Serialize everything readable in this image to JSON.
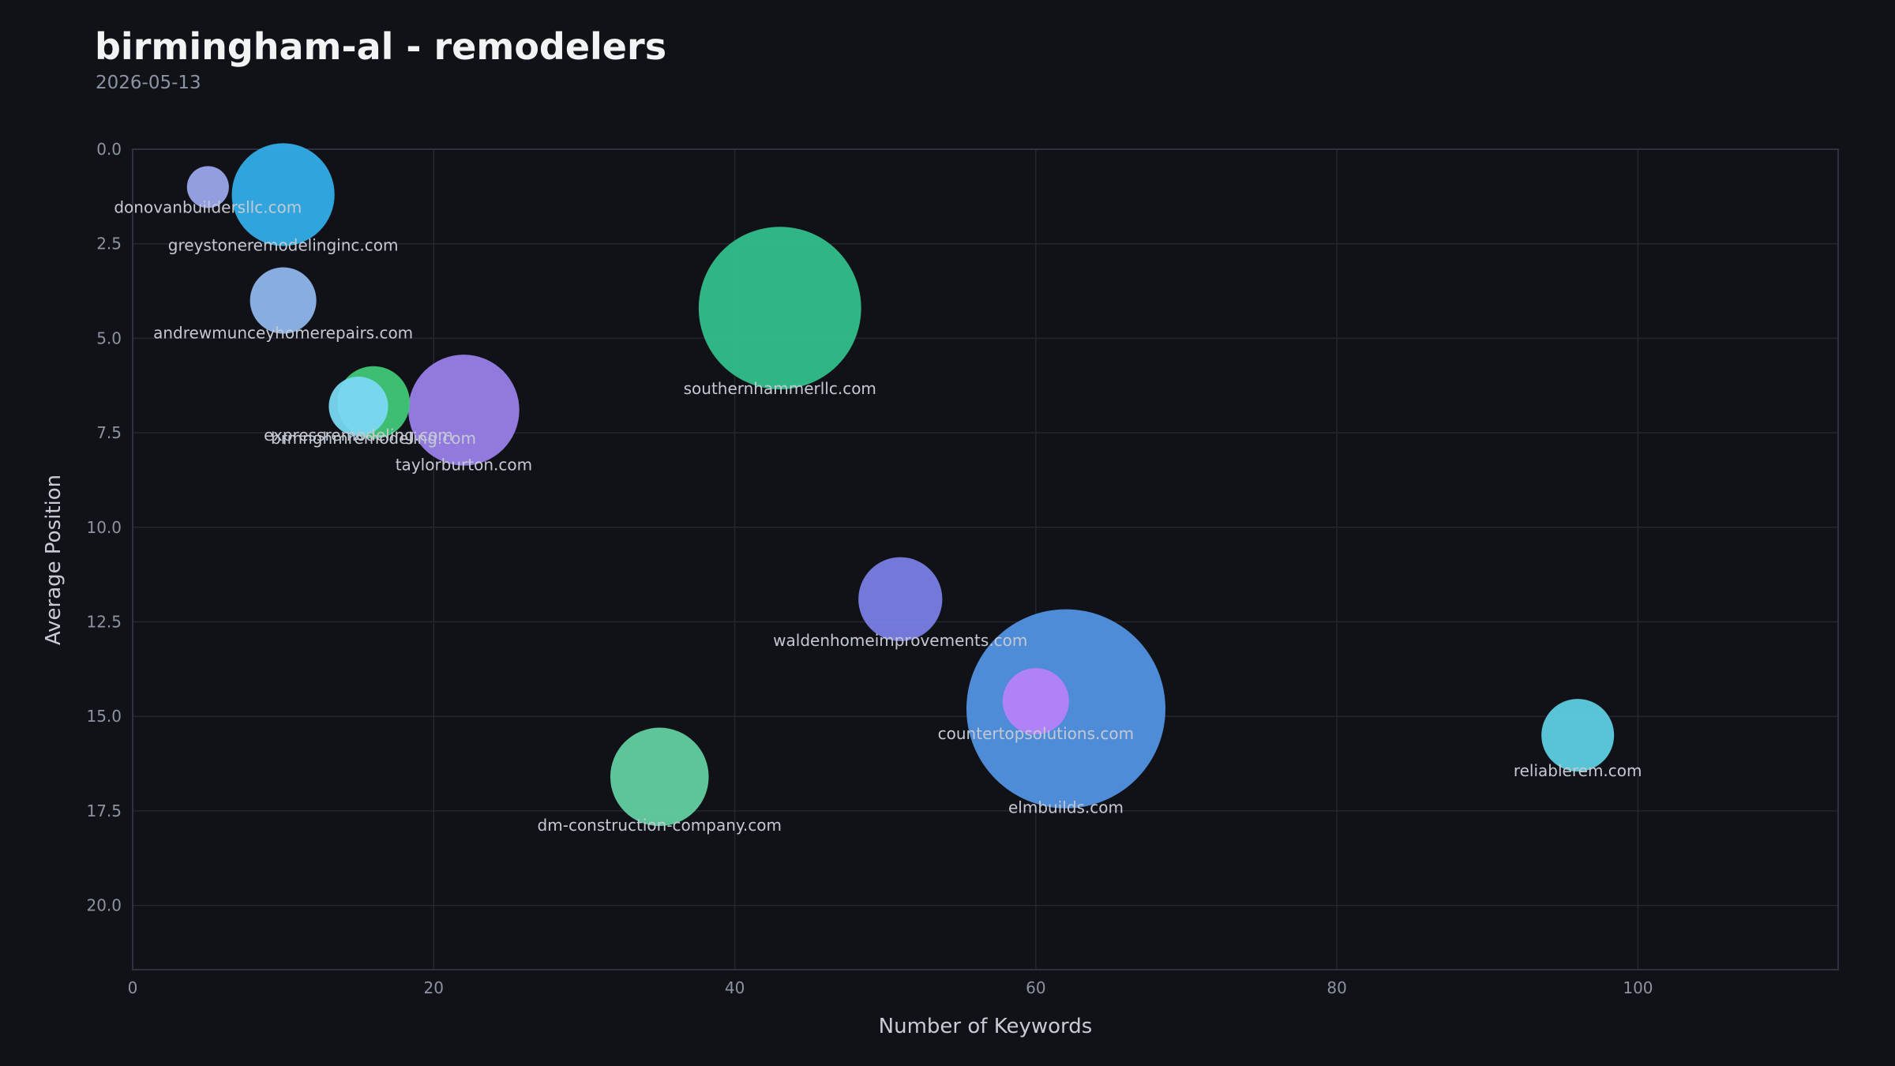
{
  "header": {
    "title": "birmingham-al - remodelers",
    "date": "2026-05-13"
  },
  "chart_data": {
    "type": "scatter",
    "variant": "bubble",
    "xlabel": "Number of Keywords",
    "ylabel": "Average Position",
    "xlim": [
      0,
      113.3
    ],
    "ylim": [
      21.7,
      0
    ],
    "y_inverted": true,
    "xticks": [
      0,
      20,
      40,
      60,
      80,
      100
    ],
    "yticks": [
      0.0,
      2.5,
      5.0,
      7.5,
      10.0,
      12.5,
      15.0,
      17.5,
      20.0
    ],
    "grid": true,
    "legend": "none",
    "points": [
      {
        "label": "donovanbuildersllc.com",
        "x": 5,
        "y": 1.0,
        "size": 2,
        "color": "#9ba7ec"
      },
      {
        "label": "greystoneremodelinginc.com",
        "x": 10,
        "y": 1.2,
        "size": 12,
        "color": "#33aee8"
      },
      {
        "label": "andrewmunceyhomerepairs.com",
        "x": 10,
        "y": 4.0,
        "size": 5,
        "color": "#8fb6eb"
      },
      {
        "label": "southernhammerllc.com",
        "x": 43,
        "y": 4.2,
        "size": 30,
        "color": "#33bf8a"
      },
      {
        "label": "brmnghmremodeling.com",
        "x": 16,
        "y": 6.7,
        "size": 6,
        "color": "#41c877"
      },
      {
        "label": "expressremodeling.com",
        "x": 15,
        "y": 6.8,
        "size": 4,
        "color": "#7ad8f2"
      },
      {
        "label": "taylorburton.com",
        "x": 22,
        "y": 6.9,
        "size": 14,
        "color": "#9a80e8"
      },
      {
        "label": "waldenhomeimprovements.com",
        "x": 51,
        "y": 11.9,
        "size": 8,
        "color": "#7a80e4"
      },
      {
        "label": "countertopsolutions.com",
        "x": 60,
        "y": 14.6,
        "size": 5,
        "color": "#b581f9"
      },
      {
        "label": "elmbuilds.com",
        "x": 62,
        "y": 14.8,
        "size": 45,
        "color": "#5294e1"
      },
      {
        "label": "reliablerem.com",
        "x": 96,
        "y": 15.5,
        "size": 6,
        "color": "#5fcfe2"
      },
      {
        "label": "dm-construction-company.com",
        "x": 35,
        "y": 16.6,
        "size": 11,
        "color": "#63d0a2"
      }
    ]
  }
}
